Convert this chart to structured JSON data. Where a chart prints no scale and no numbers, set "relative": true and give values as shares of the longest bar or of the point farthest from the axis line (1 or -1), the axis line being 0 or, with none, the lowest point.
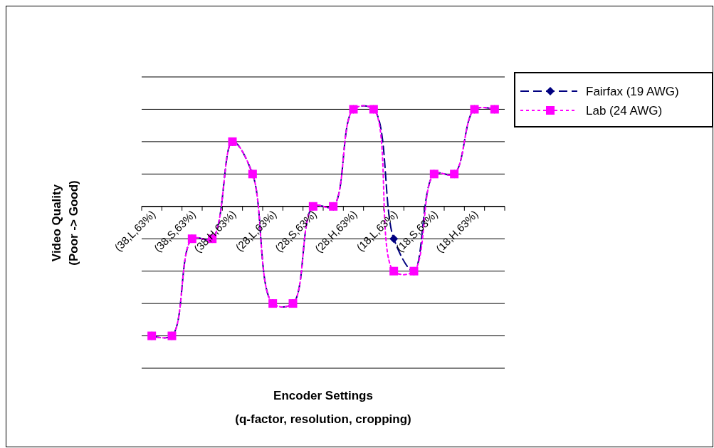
{
  "chart_data": {
    "type": "line",
    "relative": true,
    "xlabel": "Encoder Settings\n(q-factor, resolution, cropping)",
    "ylabel": "Video Quality\n(Poor -> Good)",
    "grid": "y",
    "legend": "right",
    "categories": [
      "(38,L,63%)",
      null,
      "(38,S,63%)",
      null,
      "(38,H,63%)",
      null,
      "(28,L,63%)",
      null,
      "(28,S,63%)",
      null,
      "(28,H,63%)",
      null,
      "(18,L,63%)",
      null,
      "(18,S,63%)",
      null,
      "(18,H,63%)",
      null
    ],
    "series": [
      {
        "name": "Fairfax (19 AWG)",
        "color": "#000080",
        "marker": "diamond",
        "line_style": "dashed",
        "values": [
          -1,
          -1,
          -0.25,
          -0.25,
          0.5,
          0.25,
          -0.75,
          -0.75,
          0,
          0,
          0.75,
          0.75,
          -0.25,
          -0.5,
          0.25,
          0.25,
          0.75,
          0.75
        ]
      },
      {
        "name": "Lab (24 AWG)",
        "color": "#ff00ff",
        "marker": "square",
        "line_style": "dotted",
        "values": [
          -1,
          -1,
          -0.25,
          -0.25,
          0.5,
          0.25,
          -0.75,
          -0.75,
          0,
          0,
          0.75,
          0.75,
          -0.5,
          -0.5,
          0.25,
          0.25,
          0.75,
          0.75
        ]
      }
    ]
  }
}
